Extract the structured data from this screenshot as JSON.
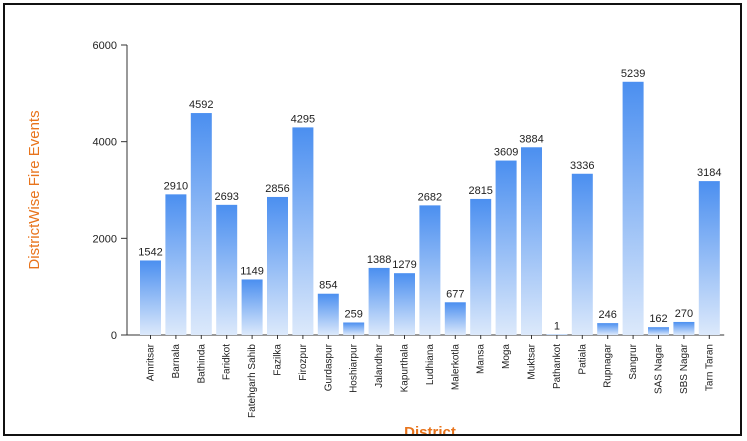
{
  "chart_data": {
    "type": "bar",
    "xlabel": "District",
    "ylabel": "DistrictWise Fire Events",
    "ylim": [
      0,
      6000
    ],
    "yticks": [
      0,
      2000,
      4000,
      6000
    ],
    "grid": false,
    "categories": [
      "Amritsar",
      "Barnala",
      "Bathinda",
      "Faridkot",
      "Fatehgarh Sahib",
      "Fazilka",
      "Firozpur",
      "Gurdaspur",
      "Hoshiarpur",
      "Jalandhar",
      "Kapurthala",
      "Ludhiana",
      "Malerkotla",
      "Mansa",
      "Moga",
      "Muktsar",
      "Pathankot",
      "Patiala",
      "Rupnagar",
      "Sangrur",
      "SAS Nagar",
      "SBS Nagar",
      "Tarn Taran"
    ],
    "values": [
      1542,
      2910,
      4592,
      2693,
      1149,
      2856,
      4295,
      854,
      259,
      1388,
      1279,
      2682,
      677,
      2815,
      3609,
      3884,
      1,
      3336,
      246,
      5239,
      162,
      270,
      3184
    ],
    "bar_color_top": "#4b8ff0",
    "bar_color_bottom": "#dce9fb"
  }
}
